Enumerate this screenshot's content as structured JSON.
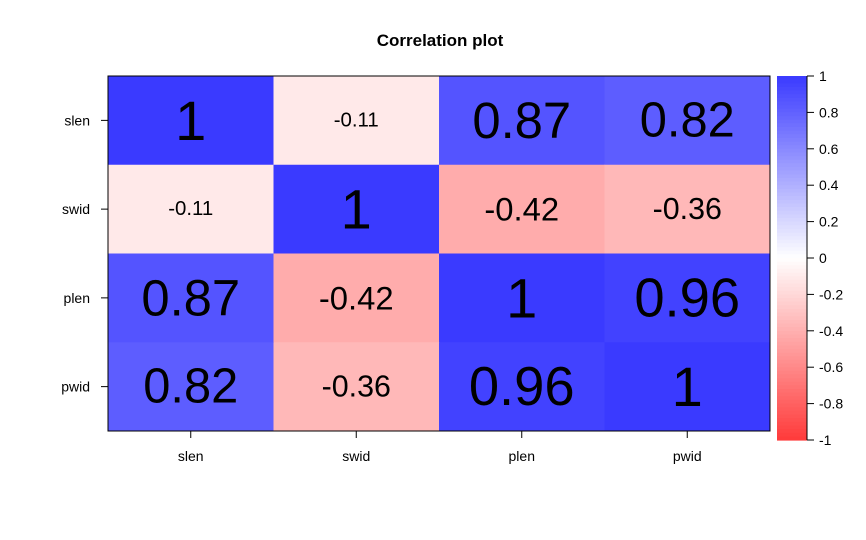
{
  "chart_data": {
    "type": "heatmap",
    "title": "Correlation plot",
    "xlabel": "",
    "ylabel": "",
    "variables": [
      "slen",
      "swid",
      "plen",
      "pwid"
    ],
    "matrix": [
      [
        1,
        -0.11,
        0.87,
        0.82
      ],
      [
        -0.11,
        1,
        -0.42,
        -0.36
      ],
      [
        0.87,
        -0.42,
        1,
        0.96
      ],
      [
        0.82,
        -0.36,
        0.96,
        1
      ]
    ],
    "cell_labels": [
      [
        "1",
        "-0.11",
        "0.87",
        "0.82"
      ],
      [
        "-0.11",
        "1",
        "-0.42",
        "-0.36"
      ],
      [
        "0.87",
        "-0.42",
        "1",
        "0.96"
      ],
      [
        "0.82",
        "-0.36",
        "0.96",
        "1"
      ]
    ],
    "colorbar": {
      "range": [
        -1,
        1
      ],
      "ticks": [
        "1",
        "0.8",
        "0.6",
        "0.4",
        "0.2",
        "0",
        "-0.2",
        "-0.4",
        "-0.6",
        "-0.8",
        "-1"
      ],
      "colors": {
        "low": "#ff3a3a",
        "mid": "#ffffff",
        "high": "#3a3aff"
      }
    }
  }
}
